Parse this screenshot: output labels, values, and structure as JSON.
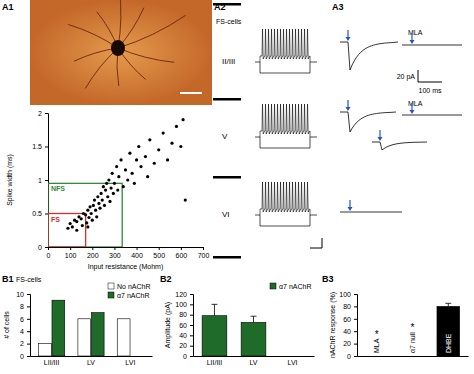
{
  "panel_labels": [
    "A1",
    "A2",
    "A3",
    "B1",
    "B2",
    "B3"
  ],
  "traces": {
    "title": "FS-cells",
    "layers": [
      "II/III",
      "V",
      "VI"
    ],
    "drug": "MLA",
    "current_scale": "20 pA",
    "time_scale": "100 ms"
  },
  "chart_data": [
    {
      "type": "scatter",
      "xlabel": "Input resistance (Mohm)",
      "ylabel": "Spike width (ms)",
      "x": [
        100,
        110,
        120,
        130,
        140,
        150,
        155,
        160,
        170,
        175,
        180,
        185,
        190,
        195,
        200,
        205,
        210,
        215,
        220,
        225,
        230,
        235,
        240,
        245,
        250,
        255,
        260,
        265,
        270,
        275,
        280,
        285,
        290,
        295,
        300,
        310,
        315,
        320,
        330,
        340,
        350,
        360,
        370,
        380,
        390,
        400,
        410,
        420,
        440,
        450,
        460,
        480,
        500,
        520,
        540,
        560,
        580,
        600,
        610,
        620,
        180,
        130,
        90
      ],
      "values": [
        0.35,
        0.3,
        0.4,
        0.38,
        0.45,
        0.42,
        0.32,
        0.5,
        0.48,
        0.36,
        0.55,
        0.44,
        0.6,
        0.5,
        0.4,
        0.62,
        0.7,
        0.55,
        0.45,
        0.75,
        0.65,
        0.58,
        0.8,
        0.7,
        0.9,
        0.62,
        0.85,
        0.95,
        0.75,
        1.0,
        0.68,
        0.88,
        1.1,
        0.8,
        0.95,
        1.2,
        0.85,
        1.05,
        1.3,
        0.9,
        1.15,
        1.0,
        1.4,
        1.1,
        0.95,
        1.3,
        1.5,
        1.2,
        1.35,
        1.05,
        1.6,
        1.25,
        1.45,
        1.7,
        1.3,
        1.55,
        1.8,
        1.5,
        1.9,
        0.7,
        0.3,
        0.25,
        0.28
      ],
      "color": "#000000",
      "xlim": [
        0,
        700
      ],
      "xticks": [
        0,
        100,
        200,
        300,
        400,
        500,
        600,
        700
      ],
      "ylim": [
        0,
        2
      ],
      "yticks": [
        0,
        0.5,
        1,
        1.5,
        2
      ],
      "regions": [
        {
          "label": "NFS",
          "x": [
            0,
            335
          ],
          "y": [
            0,
            0.95
          ],
          "color": "#2e8b3a"
        },
        {
          "label": "FS",
          "x": [
            0,
            170
          ],
          "y": [
            0,
            0.5
          ],
          "color": "#d0312d"
        }
      ]
    },
    {
      "type": "bar",
      "title": "FS-cells",
      "ylabel": "# of cells",
      "categories": [
        "LII/III",
        "LV",
        "LVI"
      ],
      "series": [
        {
          "name": "No nAChR",
          "color": "#ffffff",
          "values": [
            2,
            6,
            6
          ]
        },
        {
          "name": "α7 nAChR",
          "color": "#1e6b2a",
          "values": [
            9,
            7,
            0
          ]
        }
      ],
      "ylim": [
        0,
        10
      ],
      "yticks": [
        0,
        2,
        4,
        6,
        8,
        10
      ],
      "legend": "top-right"
    },
    {
      "type": "bar",
      "ylabel": "Amplitude (pA)",
      "categories": [
        "LII/III",
        "LV",
        "LVI"
      ],
      "series": [
        {
          "name": "α7 nAChR",
          "color": "#1e6b2a",
          "values": [
            78,
            65,
            0
          ],
          "errors": [
            22,
            12,
            0
          ]
        }
      ],
      "ylim": [
        0,
        120
      ],
      "yticks": [
        0,
        20,
        40,
        60,
        80,
        100,
        120
      ],
      "legend": "top-right"
    },
    {
      "type": "bar",
      "ylabel": "nAChR response (%)",
      "categories": [
        "MLA",
        "α7 null",
        "DHBE"
      ],
      "values": [
        0,
        0,
        80
      ],
      "errors": [
        0,
        0,
        5
      ],
      "color": "#000000",
      "ylim": [
        0,
        100
      ],
      "yticks": [
        0,
        20,
        40,
        60,
        80,
        100
      ],
      "tick_labels": "y",
      "annotations": [
        {
          "text": "*",
          "category": "MLA"
        },
        {
          "text": "*",
          "category": "α7 null"
        }
      ]
    }
  ]
}
